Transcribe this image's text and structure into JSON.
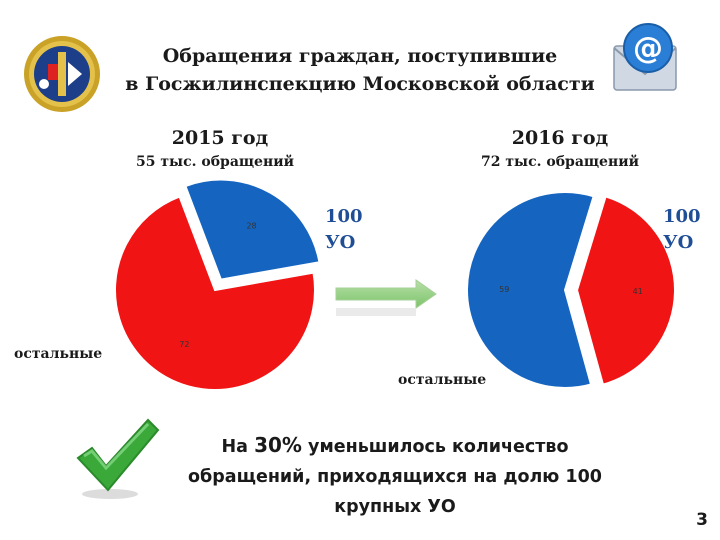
{
  "header": {
    "title_line1": "Обращения граждан, поступившие",
    "title_line2": "в Госжилинспекцию Московской области",
    "emblem_icon": "emblem-icon",
    "email_icon": "email-icon"
  },
  "left": {
    "year": "2015 год",
    "subtitle": "55 тыс. обращений",
    "uo_line1": "100",
    "uo_line2": "УО",
    "other_label": "остальные"
  },
  "right": {
    "year": "2016 год",
    "subtitle": "72 тыс. обращений",
    "uo_line1": "100",
    "uo_line2": "УО",
    "other_label": "остальные"
  },
  "arrow_icon": "right-arrow-icon",
  "check_icon": "checkmark-icon",
  "bottom_text": {
    "prefix": "На ",
    "percent": "30%",
    "rest_line1": " уменьшилось количество",
    "line2": "обращений, приходящихся на долю 100",
    "line3": "крупных УО"
  },
  "page_number": "3",
  "colors": {
    "red": "#f01414",
    "blue": "#1565c0",
    "white": "#ffffff"
  },
  "chart_data": [
    {
      "type": "pie",
      "categories": [
        "",
        ""
      ],
      "values": [
        72,
        28
      ],
      "labels": [
        "72",
        "28"
      ],
      "colors": [
        "#f01414",
        "#1565c0"
      ],
      "exploded": [
        false,
        true
      ]
    },
    {
      "type": "pie",
      "categories": [
        "",
        ""
      ],
      "values": [
        41,
        59
      ],
      "labels": [
        "41",
        "59"
      ],
      "colors": [
        "#f01414",
        "#1565c0"
      ],
      "exploded": [
        true,
        false
      ]
    }
  ]
}
